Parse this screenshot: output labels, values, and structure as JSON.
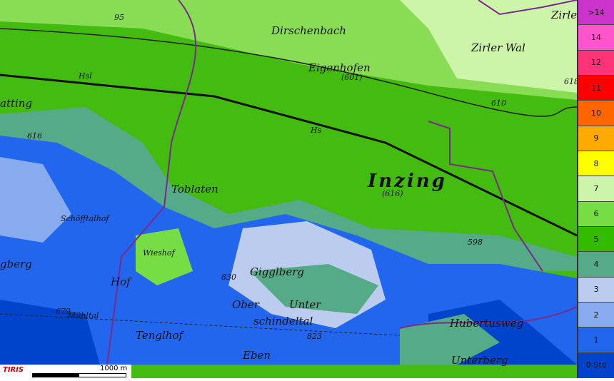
{
  "map": {
    "places": [
      "Zirle",
      "Dirschenbach",
      "Zirler Wal",
      "Eigenhofen",
      "(601)",
      "atting",
      "Hsl",
      "Hs",
      "Toblaten",
      "Inzing",
      "(616)",
      "Schöfftalhof",
      "Wieshof",
      "Gigglberg",
      "830",
      "Hof",
      "Mühltal",
      "Ober",
      "schindeltal",
      "Unter",
      "Tenglhof",
      "823",
      "Eben",
      "Hubertusweg",
      "Unterberg",
      "gberg",
      "598",
      "610",
      "618",
      "616",
      "679",
      "95"
    ],
    "legend": [
      {
        "label": ">14",
        "color": "#cc33cc"
      },
      {
        "label": "14",
        "color": "#ff55cc"
      },
      {
        "label": "12",
        "color": "#ff3377"
      },
      {
        "label": "11",
        "color": "#ff0000"
      },
      {
        "label": "10",
        "color": "#ff6600"
      },
      {
        "label": "9",
        "color": "#ffaa00"
      },
      {
        "label": "8",
        "color": "#ffff00"
      },
      {
        "label": "7",
        "color": "#ccf5aa"
      },
      {
        "label": "6",
        "color": "#77dd44"
      },
      {
        "label": "5",
        "color": "#33bb00"
      },
      {
        "label": "4",
        "color": "#55aa88"
      },
      {
        "label": "3",
        "color": "#bbccee"
      },
      {
        "label": "2",
        "color": "#88aaee"
      },
      {
        "label": "1",
        "color": "#2266ee"
      },
      {
        "label": "0 Std",
        "color": "#0044cc"
      }
    ],
    "logo": "TIRIS",
    "scale": "1000 m"
  }
}
